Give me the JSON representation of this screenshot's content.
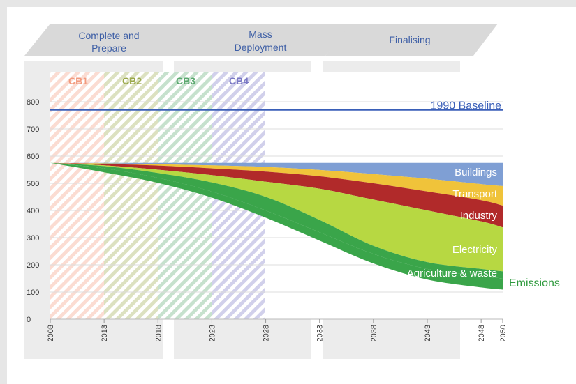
{
  "phases": [
    {
      "lines": [
        "Complete and",
        "Prepare"
      ]
    },
    {
      "lines": [
        "Mass",
        "Deployment"
      ]
    },
    {
      "lines": [
        "Finalising"
      ]
    }
  ],
  "carbon_budgets": [
    {
      "label": "CB1",
      "color": "#f29a7e"
    },
    {
      "label": "CB2",
      "color": "#9aa84a"
    },
    {
      "label": "CB3",
      "color": "#5aa86e"
    },
    {
      "label": "CB4",
      "color": "#7a78c4"
    }
  ],
  "colors": {
    "baseline": "#3a5fb8",
    "buildings": "#7f9fd4",
    "transport": "#f0c33a",
    "industry": "#b12a2a",
    "electricity": "#b7d842",
    "agriculture": "#3aa54a",
    "emissions_label": "#2f9a3e",
    "phase_banner": "#d9d9d9",
    "axis_text": "#333333"
  },
  "chart_data": {
    "type": "area",
    "x": [
      2008,
      2013,
      2018,
      2023,
      2028,
      2033,
      2038,
      2043,
      2048,
      2050
    ],
    "xlim": [
      2008,
      2050
    ],
    "ylim": [
      0,
      800
    ],
    "yticks": [
      0,
      100,
      200,
      300,
      400,
      500,
      600,
      700,
      800
    ],
    "xticks": [
      "2008",
      "2013",
      "2018",
      "2023",
      "2028",
      "2033",
      "2038",
      "2043",
      "2048",
      "2050"
    ],
    "grid": true,
    "baseline": {
      "label": "1990 Baseline",
      "value": 770
    },
    "stack_top": [
      575,
      575,
      575,
      575,
      575,
      575,
      575,
      575,
      575,
      575
    ],
    "series": [
      {
        "name": "Buildings",
        "key": "buildings",
        "upper": [
          575,
          573,
          570,
          566,
          560,
          549,
          534,
          517,
          497,
          490
        ]
      },
      {
        "name": "Transport",
        "key": "transport",
        "upper": [
          575,
          571,
          565,
          555,
          543,
          526,
          500,
          470,
          438,
          418
        ]
      },
      {
        "name": "Industry",
        "key": "industry",
        "upper": [
          575,
          566,
          550,
          530,
          506,
          480,
          440,
          400,
          360,
          338
        ]
      },
      {
        "name": "Electricity",
        "key": "electricity",
        "upper": [
          575,
          563,
          538,
          503,
          450,
          365,
          270,
          210,
          185,
          176
        ]
      },
      {
        "name": "Agriculture & waste",
        "key": "agriculture",
        "upper": [
          575,
          555,
          520,
          470,
          400,
          320,
          240,
          185,
          158,
          150
        ]
      }
    ],
    "emissions": {
      "label": "Emissions",
      "values": [
        575,
        555,
        520,
        470,
        400,
        320,
        240,
        185,
        158,
        150
      ]
    }
  }
}
